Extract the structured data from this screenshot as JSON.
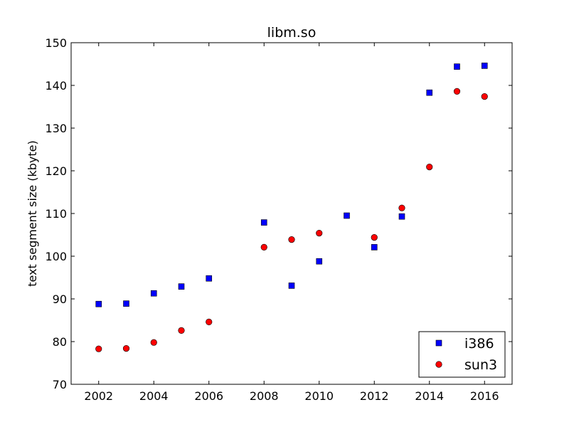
{
  "chart_data": {
    "type": "scatter",
    "title": "libm.so",
    "xlabel": "",
    "ylabel": "text segment size (kbyte)",
    "xlim": [
      2001,
      2017
    ],
    "ylim": [
      70,
      150
    ],
    "xticks": [
      2002,
      2004,
      2006,
      2008,
      2010,
      2012,
      2014,
      2016
    ],
    "yticks": [
      70,
      80,
      90,
      100,
      110,
      120,
      130,
      140,
      150
    ],
    "grid": false,
    "legend_position": "lower right",
    "series": [
      {
        "name": "i386",
        "marker": "square",
        "color": "#0000ff",
        "points": [
          [
            2002,
            88.8
          ],
          [
            2003,
            88.9
          ],
          [
            2004,
            91.3
          ],
          [
            2005,
            92.9
          ],
          [
            2006,
            94.8
          ],
          [
            2008,
            107.9
          ],
          [
            2009,
            93.1
          ],
          [
            2010,
            98.8
          ],
          [
            2011,
            109.5
          ],
          [
            2012,
            102.1
          ],
          [
            2013,
            109.3
          ],
          [
            2014,
            138.3
          ],
          [
            2015,
            144.4
          ],
          [
            2016,
            144.6
          ]
        ]
      },
      {
        "name": "sun3",
        "marker": "circle",
        "color": "#ff0000",
        "points": [
          [
            2002,
            78.3
          ],
          [
            2003,
            78.4
          ],
          [
            2004,
            79.8
          ],
          [
            2005,
            82.6
          ],
          [
            2006,
            84.6
          ],
          [
            2008,
            102.1
          ],
          [
            2009,
            103.9
          ],
          [
            2010,
            105.4
          ],
          [
            2012,
            104.4
          ],
          [
            2013,
            111.3
          ],
          [
            2014,
            120.9
          ],
          [
            2015,
            138.6
          ],
          [
            2016,
            137.4
          ]
        ]
      }
    ]
  }
}
